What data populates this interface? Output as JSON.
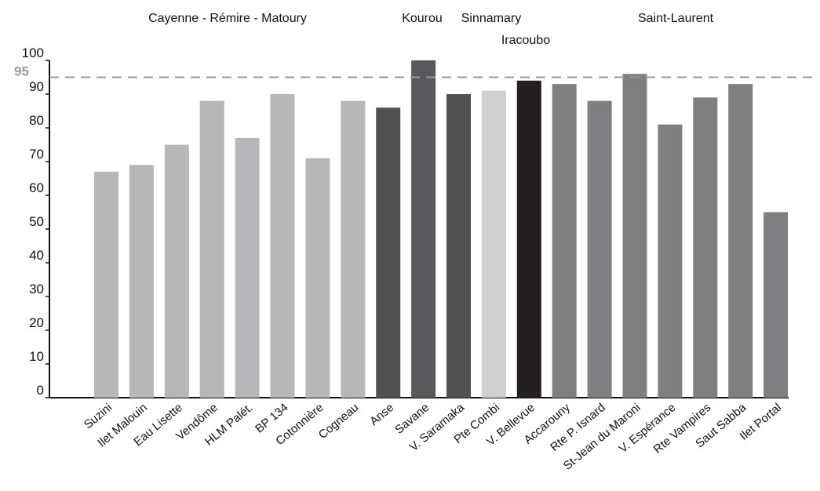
{
  "chart_data": {
    "type": "bar",
    "categories": [
      "Suzini",
      "Ilet Malouin",
      "Eau Lisette",
      "Vendôme",
      "HLM Palét.",
      "BP 134",
      "Cotonnière",
      "Cogneau",
      "Anse",
      "Savane",
      "V. Saramaka",
      "Pte Combi",
      "V. Bellevue",
      "Accarouny",
      "Rte P. Isnard",
      "St-Jean du Maroni",
      "V. Espérance",
      "Rte Vampires",
      "Saut Sabba",
      "Ilet Portal"
    ],
    "values": [
      67,
      69,
      75,
      88,
      77,
      90,
      71,
      88,
      86,
      100,
      90,
      91,
      94,
      93,
      88,
      96,
      81,
      89,
      93,
      55
    ],
    "bar_colors": [
      "#b7b7ba",
      "#b7b7ba",
      "#b7b7ba",
      "#b7b7ba",
      "#b7b7ba",
      "#b7b7ba",
      "#b7b7ba",
      "#b7b7ba",
      "#505153",
      "#58595b",
      "#505153",
      "#d0d0d2",
      "#231f20",
      "#7f7f82",
      "#7f7f82",
      "#7f7f82",
      "#7f7f82",
      "#7f7f82",
      "#7f7f82",
      "#7f7f82"
    ],
    "ylim": [
      0,
      100
    ],
    "yticks": [
      "0",
      "10",
      "20",
      "30",
      "40",
      "50",
      "60",
      "70",
      "80",
      "90",
      "100"
    ],
    "reference_line": {
      "value": 95,
      "label": "95",
      "color": "#999999",
      "style": "dashed"
    },
    "group_labels": [
      "Cayenne - Rémire - Matoury",
      "Kourou",
      "Sinnamary",
      "Iracoubo",
      "Saint-Laurent"
    ],
    "grid": false
  }
}
